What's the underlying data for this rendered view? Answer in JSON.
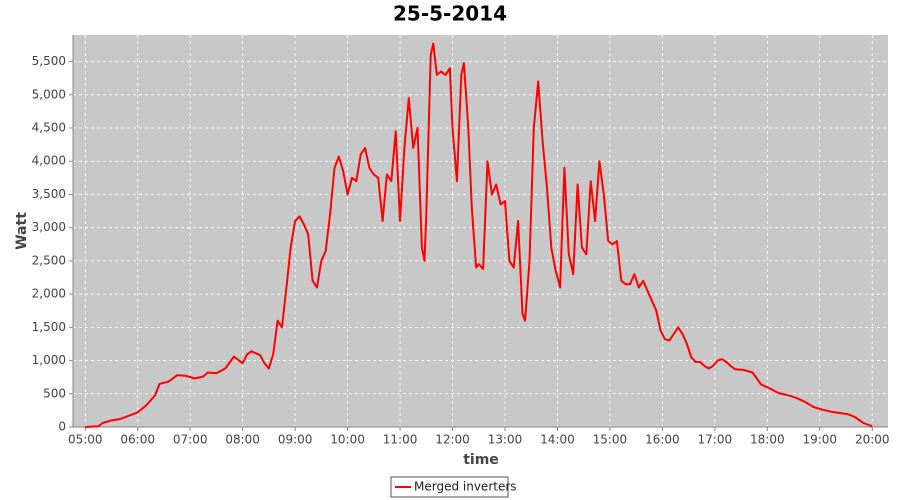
{
  "chart_data": {
    "type": "line",
    "title": "25-5-2014",
    "x_label": "time",
    "y_label": "Watt",
    "xlim": [
      "04:46",
      "20:18"
    ],
    "xticks": [
      "05:00",
      "06:00",
      "07:00",
      "08:00",
      "09:00",
      "10:00",
      "11:00",
      "12:00",
      "13:00",
      "14:00",
      "15:00",
      "16:00",
      "17:00",
      "18:00",
      "19:00",
      "20:00"
    ],
    "ylim": [
      0,
      5900
    ],
    "yticks": [
      0,
      500,
      {
        "value": 1000,
        "label": "1,000"
      },
      {
        "value": 1500,
        "label": "1,500"
      },
      {
        "value": 2000,
        "label": "2,000"
      },
      {
        "value": 2500,
        "label": "2,500"
      },
      {
        "value": 3000,
        "label": "3,000"
      },
      {
        "value": 3500,
        "label": "3,500"
      },
      {
        "value": 4000,
        "label": "4,000"
      },
      {
        "value": 4500,
        "label": "4,500"
      },
      {
        "value": 5000,
        "label": "5,000"
      },
      {
        "value": 5500,
        "label": "5,500"
      }
    ],
    "grid": true,
    "legend": "bottom",
    "x": [
      "05:00",
      "05:15",
      "05:20",
      "05:30",
      "05:40",
      "05:50",
      "06:00",
      "06:10",
      "06:20",
      "06:25",
      "06:35",
      "06:45",
      "06:55",
      "07:05",
      "07:15",
      "07:20",
      "07:30",
      "07:40",
      "07:50",
      "08:00",
      "08:05",
      "08:10",
      "08:20",
      "08:25",
      "08:30",
      "08:35",
      "08:40",
      "08:45",
      "08:50",
      "08:55",
      "09:00",
      "09:05",
      "09:10",
      "09:15",
      "09:20",
      "09:25",
      "09:30",
      "09:35",
      "09:40",
      "09:45",
      "09:50",
      "09:55",
      "10:00",
      "10:05",
      "10:10",
      "10:15",
      "10:20",
      "10:25",
      "10:30",
      "10:35",
      "10:40",
      "10:45",
      "10:50",
      "10:55",
      "11:00",
      "11:05",
      "11:10",
      "11:15",
      "11:20",
      "11:25",
      "11:28",
      "11:30",
      "11:35",
      "11:38",
      "11:42",
      "11:47",
      "11:52",
      "11:57",
      "12:00",
      "12:05",
      "12:10",
      "12:13",
      "12:18",
      "12:22",
      "12:27",
      "12:30",
      "12:35",
      "12:40",
      "12:45",
      "12:50",
      "12:55",
      "13:00",
      "13:05",
      "13:10",
      "13:15",
      "13:20",
      "13:23",
      "13:28",
      "13:33",
      "13:38",
      "13:43",
      "13:48",
      "13:53",
      "13:58",
      "14:03",
      "14:08",
      "14:13",
      "14:18",
      "14:23",
      "14:28",
      "14:33",
      "14:38",
      "14:43",
      "14:48",
      "14:53",
      "14:58",
      "15:03",
      "15:08",
      "15:13",
      "15:18",
      "15:23",
      "15:28",
      "15:33",
      "15:38",
      "15:43",
      "15:48",
      "15:53",
      "15:58",
      "16:03",
      "16:08",
      "16:13",
      "16:18",
      "16:23",
      "16:28",
      "16:33",
      "16:38",
      "16:43",
      "16:48",
      "16:53",
      "16:58",
      "17:03",
      "17:08",
      "17:13",
      "17:18",
      "17:23",
      "17:33",
      "17:43",
      "17:53",
      "18:03",
      "18:13",
      "18:23",
      "18:33",
      "18:43",
      "18:53",
      "19:03",
      "19:13",
      "19:23",
      "19:33",
      "19:40",
      "19:50",
      "20:00"
    ],
    "series": [
      {
        "name": "Merged inverters",
        "color": "#ff0000",
        "values": [
          0,
          10,
          60,
          100,
          120,
          170,
          220,
          330,
          480,
          650,
          680,
          780,
          770,
          730,
          760,
          820,
          810,
          880,
          1060,
          960,
          1090,
          1140,
          1080,
          960,
          880,
          1100,
          1600,
          1500,
          2100,
          2700,
          3100,
          3170,
          3050,
          2900,
          2200,
          2100,
          2500,
          2650,
          3200,
          3900,
          4070,
          3850,
          3500,
          3750,
          3700,
          4100,
          4200,
          3900,
          3800,
          3750,
          3100,
          3800,
          3700,
          4450,
          3100,
          4200,
          4950,
          4200,
          4500,
          2700,
          2500,
          3200,
          5600,
          5770,
          5300,
          5350,
          5300,
          5400,
          4500,
          3700,
          5300,
          5480,
          4500,
          3300,
          2400,
          2450,
          2380,
          4000,
          3500,
          3650,
          3350,
          3400,
          2500,
          2400,
          3100,
          1700,
          1600,
          2500,
          4500,
          5200,
          4300,
          3600,
          2700,
          2350,
          2100,
          3900,
          2600,
          2300,
          3650,
          2700,
          2600,
          3700,
          3100,
          4000,
          3500,
          2800,
          2750,
          2800,
          2200,
          2150,
          2150,
          2300,
          2100,
          2200,
          2050,
          1900,
          1750,
          1450,
          1320,
          1300,
          1400,
          1500,
          1400,
          1250,
          1050,
          980,
          980,
          920,
          880,
          920,
          1000,
          1020,
          980,
          920,
          870,
          860,
          820,
          640,
          580,
          510,
          480,
          440,
          380,
          300,
          260,
          230,
          210,
          190,
          150,
          60,
          10
        ]
      }
    ]
  }
}
